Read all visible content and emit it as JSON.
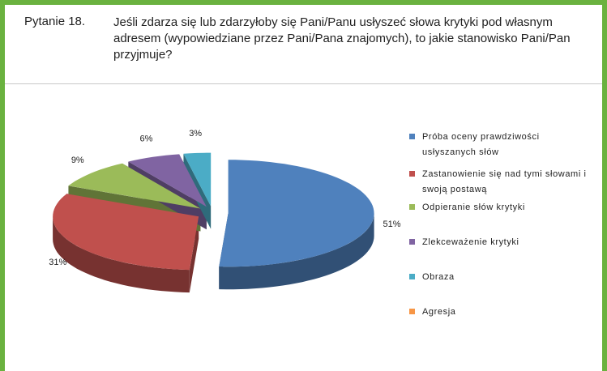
{
  "header": {
    "label": "Pytanie 18.",
    "text": "Jeśli zdarza się lub zdarzyłoby się Pani/Panu usłyszeć słowa krytyki pod własnym adresem (wypowiedziane przez Pani/Pana znajomych), to jakie stanowisko Pani/Pan przyjmuje?"
  },
  "chart_data": {
    "type": "pie",
    "categories": [
      "Próba oceny prawdziwości usłyszanych słów",
      "Zastanowienie się nad tymi słowami i swoją postawą",
      "Odpieranie słów krytyki",
      "Zlekceważenie krytyki",
      "Obraza",
      "Agresja"
    ],
    "values": [
      51,
      31,
      9,
      6,
      3,
      0
    ],
    "value_labels": [
      "51%",
      "31%",
      "9%",
      "6%",
      "3%",
      null
    ],
    "colors": [
      "#4f81bd",
      "#c0504d",
      "#9bbb59",
      "#8064a2",
      "#4bacc6",
      "#f79646"
    ],
    "legend": "right"
  }
}
